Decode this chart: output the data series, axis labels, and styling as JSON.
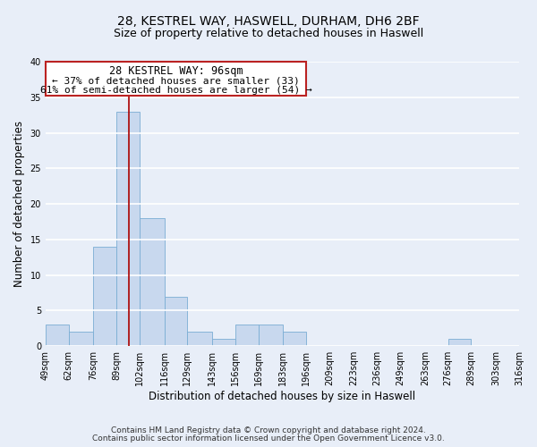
{
  "title": "28, KESTREL WAY, HASWELL, DURHAM, DH6 2BF",
  "subtitle": "Size of property relative to detached houses in Haswell",
  "xlabel": "Distribution of detached houses by size in Haswell",
  "ylabel": "Number of detached properties",
  "bin_edges": [
    49,
    62,
    76,
    89,
    102,
    116,
    129,
    143,
    156,
    169,
    183,
    196,
    209,
    223,
    236,
    249,
    263,
    276,
    289,
    303,
    316
  ],
  "bar_heights": [
    3,
    2,
    14,
    33,
    18,
    7,
    2,
    1,
    3,
    3,
    2,
    0,
    0,
    0,
    0,
    0,
    0,
    1,
    0,
    0
  ],
  "bar_color": "#c8d8ee",
  "bar_edge_color": "#7aadd4",
  "vline_x": 96,
  "vline_color": "#aa0000",
  "ylim": [
    0,
    40
  ],
  "yticks": [
    0,
    5,
    10,
    15,
    20,
    25,
    30,
    35,
    40
  ],
  "annotation_title": "28 KESTREL WAY: 96sqm",
  "annotation_line1": "← 37% of detached houses are smaller (33)",
  "annotation_line2": "61% of semi-detached houses are larger (54) →",
  "annotation_box_color": "#ffffff",
  "annotation_box_edge": "#bb2222",
  "footer_line1": "Contains HM Land Registry data © Crown copyright and database right 2024.",
  "footer_line2": "Contains public sector information licensed under the Open Government Licence v3.0.",
  "background_color": "#e8eef8",
  "grid_color": "#ffffff",
  "title_fontsize": 10,
  "subtitle_fontsize": 9,
  "axis_label_fontsize": 8.5,
  "tick_fontsize": 7,
  "annotation_title_fontsize": 8.5,
  "annotation_body_fontsize": 8,
  "footer_fontsize": 6.5
}
